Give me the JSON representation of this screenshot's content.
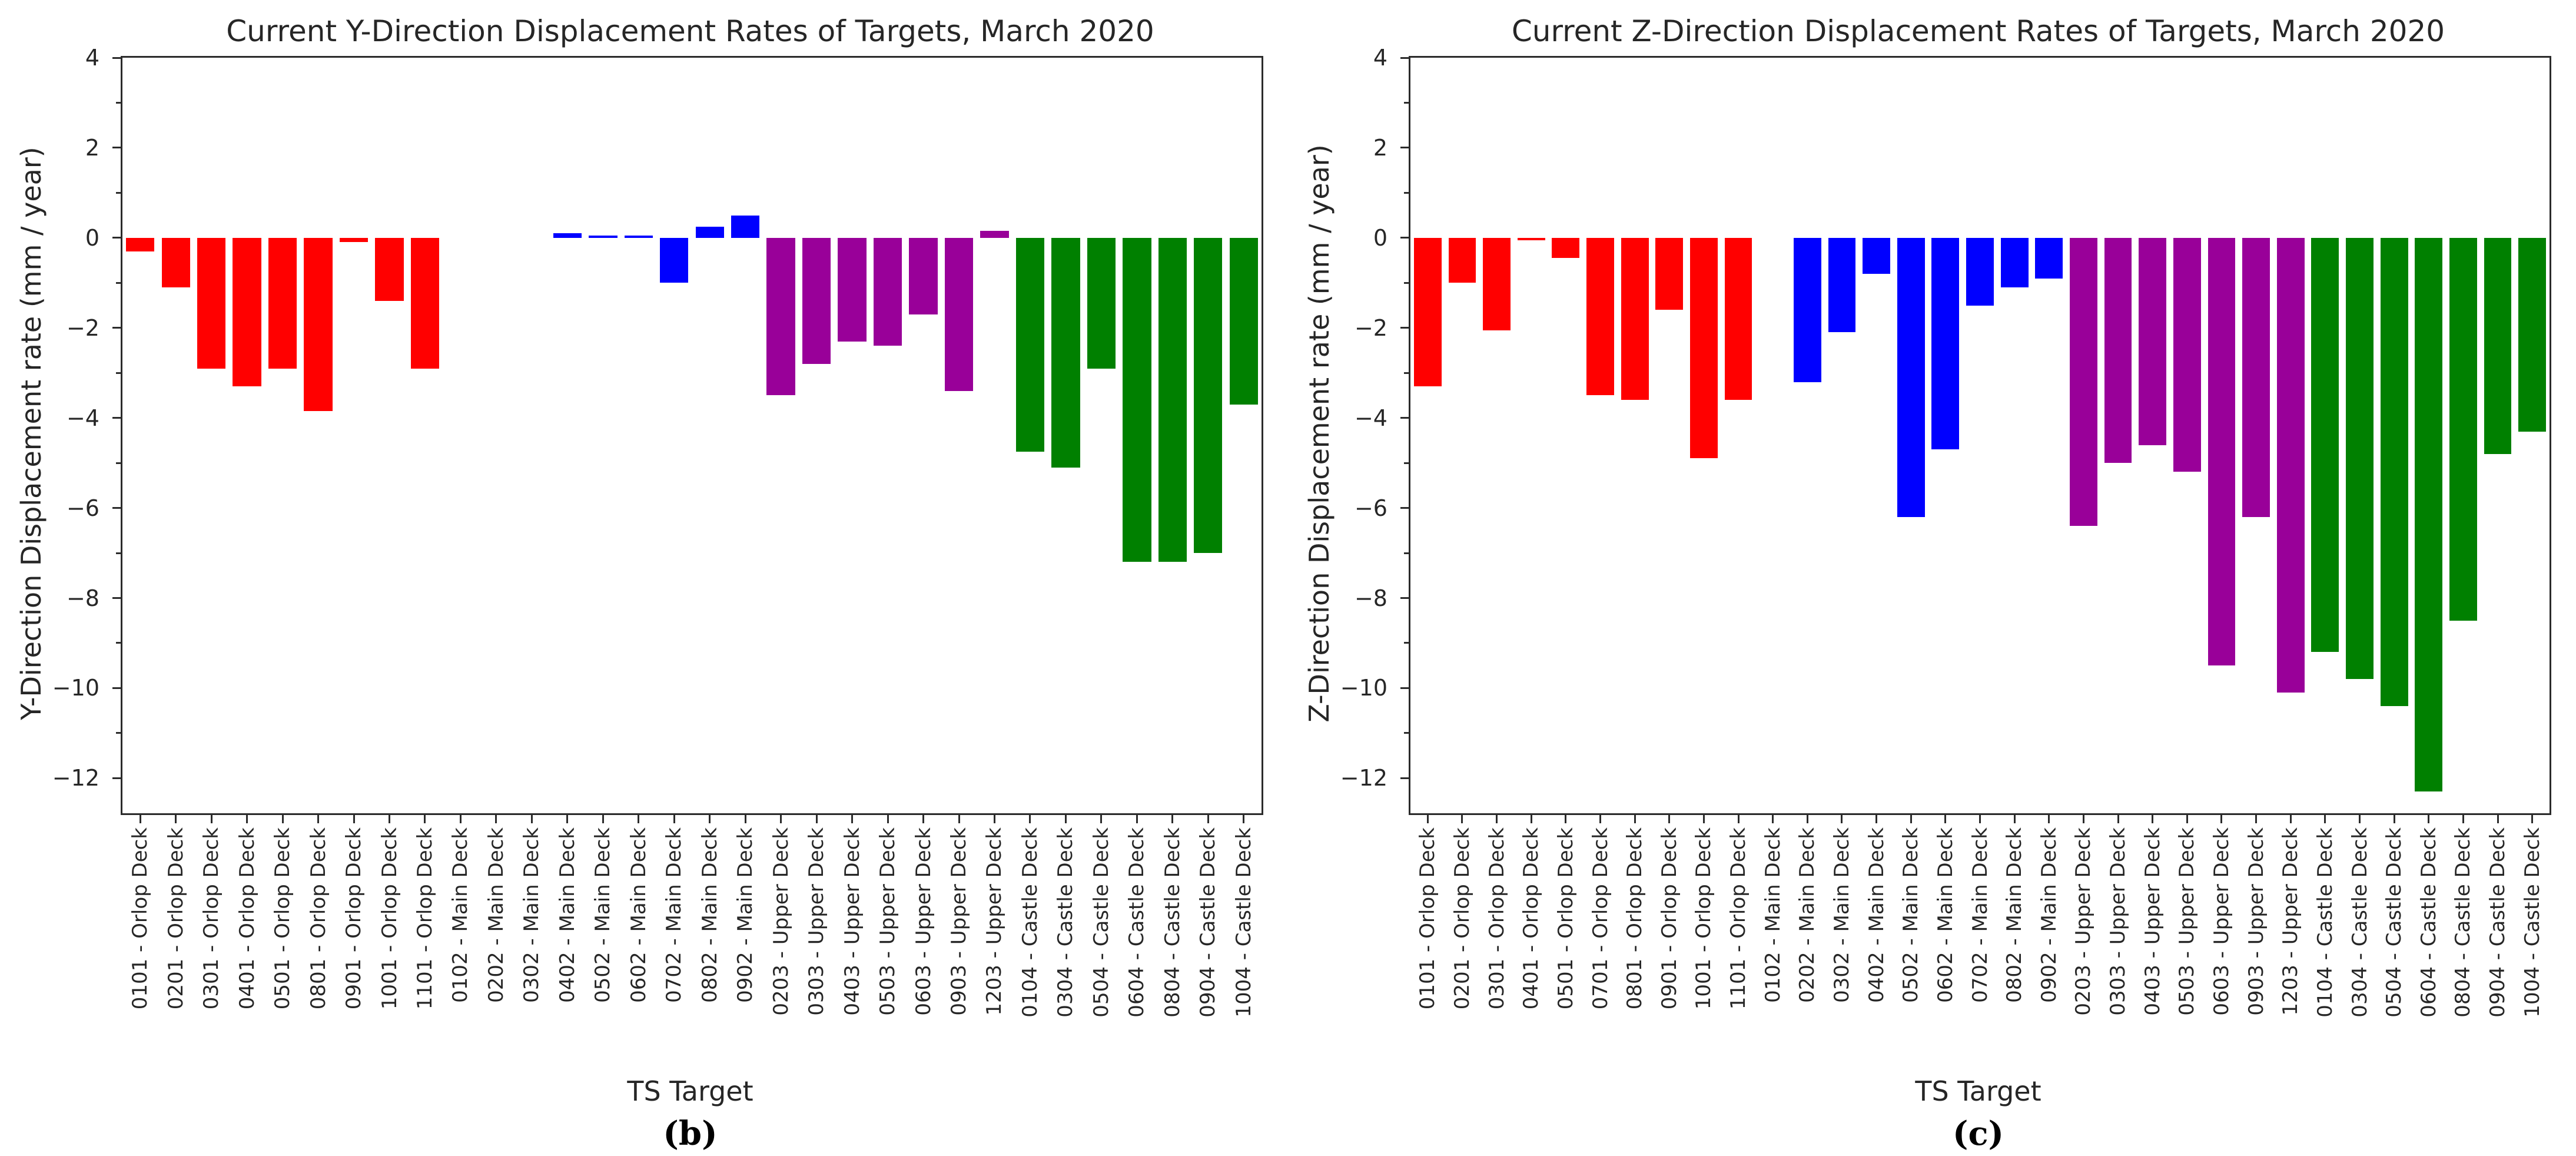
{
  "figure": {
    "background": "#ffffff",
    "spine_color": "#2b2b2b"
  },
  "deck_colors": {
    "Orlop Deck": "#ff0000",
    "Main Deck": "#0000ff",
    "Upper Deck": "#990099",
    "Castle Deck": "#008000"
  },
  "chart_data": [
    {
      "type": "bar",
      "title": "Current Y-Direction Displacement Rates of Targets, March 2020",
      "xlabel": "TS Target",
      "ylabel": "Y-Direction Displacement rate (mm / year)",
      "caption": "(b)",
      "ylim": [
        4,
        -12.78
      ],
      "yticks": [
        4,
        2,
        0,
        -2,
        -4,
        -6,
        -8,
        -10,
        -12
      ],
      "grid": false,
      "legend": "none",
      "categories": [
        "0101 - Orlop Deck",
        "0201 - Orlop Deck",
        "0301 - Orlop Deck",
        "0401 - Orlop Deck",
        "0501 - Orlop Deck",
        "0801 - Orlop Deck",
        "0901 - Orlop Deck",
        "1001 - Orlop Deck",
        "1101 - Orlop Deck",
        "0102 - Main Deck",
        "0202 - Main Deck",
        "0302 - Main Deck",
        "0402 - Main Deck",
        "0502 - Main Deck",
        "0602 - Main Deck",
        "0702 - Main Deck",
        "0802 - Main Deck",
        "0902 - Main Deck",
        "0203 - Upper Deck",
        "0303 - Upper Deck",
        "0403 - Upper Deck",
        "0503 - Upper Deck",
        "0603 - Upper Deck",
        "0903 - Upper Deck",
        "1203 - Upper Deck",
        "0104 - Castle Deck",
        "0304 - Castle Deck",
        "0504 - Castle Deck",
        "0604 - Castle Deck",
        "0804 - Castle Deck",
        "0904 - Castle Deck",
        "1004 - Castle Deck"
      ],
      "values": [
        -0.3,
        -1.1,
        -2.9,
        -3.3,
        -2.9,
        -3.85,
        -0.1,
        -1.4,
        -2.9,
        0,
        0,
        0,
        0.1,
        0.05,
        0.05,
        -1.0,
        0.25,
        0.5,
        -3.5,
        -2.8,
        -2.3,
        -2.4,
        -1.7,
        -3.4,
        0.15,
        -4.75,
        -5.1,
        -2.9,
        -7.2,
        -7.2,
        -7.0,
        -3.7
      ]
    },
    {
      "type": "bar",
      "title": "Current Z-Direction Displacement Rates of Targets, March 2020",
      "xlabel": "TS Target",
      "ylabel": "Z-Direction Displacement rate (mm / year)",
      "caption": "(c)",
      "ylim": [
        4,
        -12.78
      ],
      "yticks": [
        4,
        2,
        0,
        -2,
        -4,
        -6,
        -8,
        -10,
        -12
      ],
      "grid": false,
      "legend": "none",
      "categories": [
        "0101 - Orlop Deck",
        "0201 - Orlop Deck",
        "0301 - Orlop Deck",
        "0401 - Orlop Deck",
        "0501 - Orlop Deck",
        "0701 - Orlop Deck",
        "0801 - Orlop Deck",
        "0901 - Orlop Deck",
        "1001 - Orlop Deck",
        "1101 - Orlop Deck",
        "0102 - Main Deck",
        "0202 - Main Deck",
        "0302 - Main Deck",
        "0402 - Main Deck",
        "0502 - Main Deck",
        "0602 - Main Deck",
        "0702 - Main Deck",
        "0802 - Main Deck",
        "0902 - Main Deck",
        "0203 - Upper Deck",
        "0303 - Upper Deck",
        "0403 - Upper Deck",
        "0503 - Upper Deck",
        "0603 - Upper Deck",
        "0903 - Upper Deck",
        "1203 - Upper Deck",
        "0104 - Castle Deck",
        "0304 - Castle Deck",
        "0504 - Castle Deck",
        "0604 - Castle Deck",
        "0804 - Castle Deck",
        "0904 - Castle Deck",
        "1004 - Castle Deck"
      ],
      "values": [
        -3.3,
        -1.0,
        -2.05,
        -0.05,
        -0.45,
        -3.5,
        -3.6,
        -1.6,
        -4.9,
        -3.6,
        0,
        -3.2,
        -2.1,
        -0.8,
        -6.2,
        -4.7,
        -1.5,
        -1.1,
        -0.9,
        -6.4,
        -5.0,
        -4.6,
        -5.2,
        -9.5,
        -6.2,
        -10.1,
        -9.2,
        -9.8,
        -10.4,
        -12.3,
        -8.5,
        -4.8,
        -4.3
      ]
    }
  ]
}
